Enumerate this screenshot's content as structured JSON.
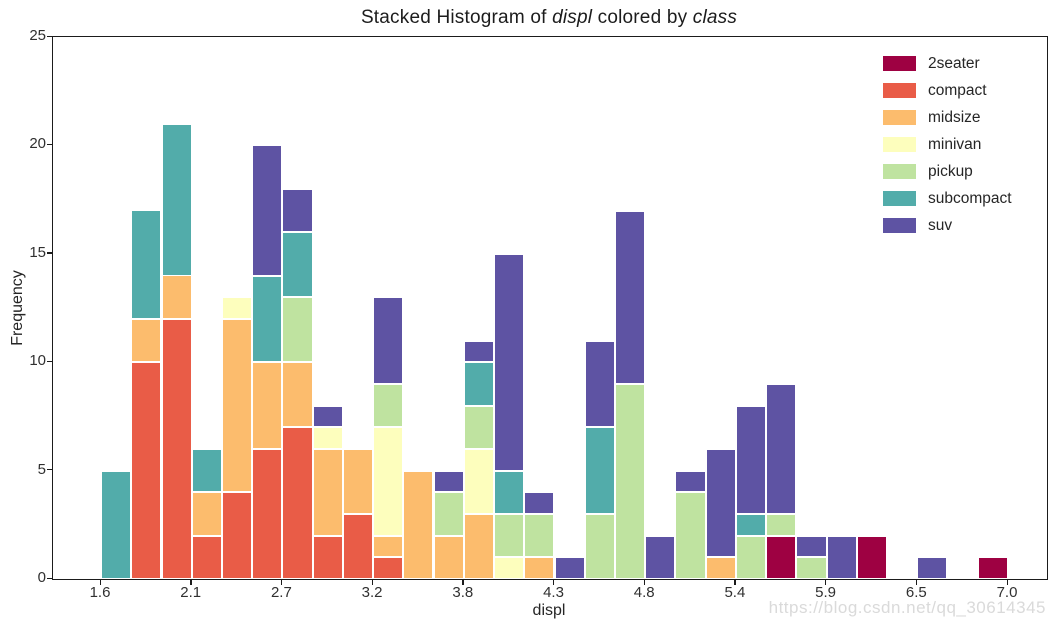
{
  "watermark": "https://blog.csdn.net/qq_30614345",
  "chart_data": {
    "type": "bar",
    "variant": "stacked-histogram",
    "title_plain": "Stacked Histogram of displ colored by class",
    "title_parts": {
      "prefix": "Stacked Histogram of ",
      "var1": "displ",
      "middle": " colored by ",
      "var2": "class"
    },
    "xlabel": "displ",
    "ylabel": "Frequency",
    "x_range": [
      1.6,
      7.0
    ],
    "ylim": [
      0,
      25
    ],
    "grid": false,
    "legend_position": "upper right",
    "yticks": [
      "0",
      "5",
      "10",
      "15",
      "20",
      "25"
    ],
    "xticks": [
      {
        "label": "1.6",
        "value": 1.6
      },
      {
        "label": "2.1",
        "value": 2.14
      },
      {
        "label": "2.7",
        "value": 2.68
      },
      {
        "label": "3.2",
        "value": 3.22
      },
      {
        "label": "3.8",
        "value": 3.76
      },
      {
        "label": "4.3",
        "value": 4.3
      },
      {
        "label": "4.8",
        "value": 4.84
      },
      {
        "label": "5.4",
        "value": 5.38
      },
      {
        "label": "5.9",
        "value": 5.92
      },
      {
        "label": "6.5",
        "value": 6.46
      },
      {
        "label": "7.0",
        "value": 7.0
      }
    ],
    "bin_start": 1.6,
    "bin_width": 0.18,
    "n_bins": 30,
    "stack_order_bottom_to_top": [
      "2seater",
      "compact",
      "midsize",
      "minivan",
      "pickup",
      "subcompact",
      "suv"
    ],
    "legend": [
      {
        "name": "2seater",
        "color": "#9e0142"
      },
      {
        "name": "compact",
        "color": "#e95c47"
      },
      {
        "name": "midsize",
        "color": "#fcbc6d"
      },
      {
        "name": "minivan",
        "color": "#fdfebd"
      },
      {
        "name": "pickup",
        "color": "#bfe3a0"
      },
      {
        "name": "subcompact",
        "color": "#52acaa"
      },
      {
        "name": "suv",
        "color": "#5e53a3"
      }
    ],
    "series": [
      {
        "name": "2seater",
        "values": [
          0,
          0,
          0,
          0,
          0,
          0,
          0,
          0,
          0,
          0,
          0,
          0,
          0,
          0,
          0,
          0,
          0,
          0,
          0,
          0,
          0,
          0,
          2,
          0,
          0,
          2,
          0,
          0,
          0,
          1
        ]
      },
      {
        "name": "compact",
        "values": [
          0,
          10,
          12,
          2,
          4,
          6,
          7,
          2,
          3,
          1,
          0,
          0,
          0,
          0,
          0,
          0,
          0,
          0,
          0,
          0,
          0,
          0,
          0,
          0,
          0,
          0,
          0,
          0,
          0,
          0
        ]
      },
      {
        "name": "midsize",
        "values": [
          0,
          2,
          2,
          2,
          8,
          4,
          3,
          4,
          3,
          1,
          5,
          2,
          3,
          0,
          1,
          0,
          0,
          0,
          0,
          0,
          1,
          0,
          0,
          0,
          0,
          0,
          0,
          0,
          0,
          0
        ]
      },
      {
        "name": "minivan",
        "values": [
          0,
          0,
          0,
          0,
          1,
          0,
          0,
          1,
          0,
          5,
          0,
          0,
          3,
          1,
          0,
          0,
          0,
          0,
          0,
          0,
          0,
          0,
          0,
          0,
          0,
          0,
          0,
          0,
          0,
          0
        ]
      },
      {
        "name": "pickup",
        "values": [
          0,
          0,
          0,
          0,
          0,
          0,
          3,
          0,
          0,
          2,
          0,
          2,
          2,
          2,
          2,
          0,
          3,
          9,
          0,
          4,
          0,
          2,
          1,
          1,
          0,
          0,
          0,
          0,
          0,
          0
        ]
      },
      {
        "name": "subcompact",
        "values": [
          5,
          5,
          7,
          2,
          0,
          4,
          3,
          0,
          0,
          0,
          0,
          0,
          2,
          2,
          0,
          0,
          4,
          0,
          0,
          0,
          0,
          1,
          0,
          0,
          0,
          0,
          0,
          0,
          0,
          0
        ]
      },
      {
        "name": "suv",
        "values": [
          0,
          0,
          0,
          0,
          0,
          6,
          2,
          1,
          0,
          4,
          0,
          1,
          1,
          10,
          1,
          1,
          4,
          8,
          2,
          1,
          5,
          5,
          6,
          1,
          2,
          0,
          0,
          1,
          0,
          0
        ]
      }
    ],
    "bin_totals": [
      5,
      17,
      21,
      6,
      13,
      20,
      18,
      8,
      6,
      13,
      5,
      5,
      11,
      15,
      4,
      1,
      11,
      17,
      2,
      5,
      6,
      8,
      9,
      2,
      2,
      2,
      0,
      1,
      0,
      1
    ]
  }
}
